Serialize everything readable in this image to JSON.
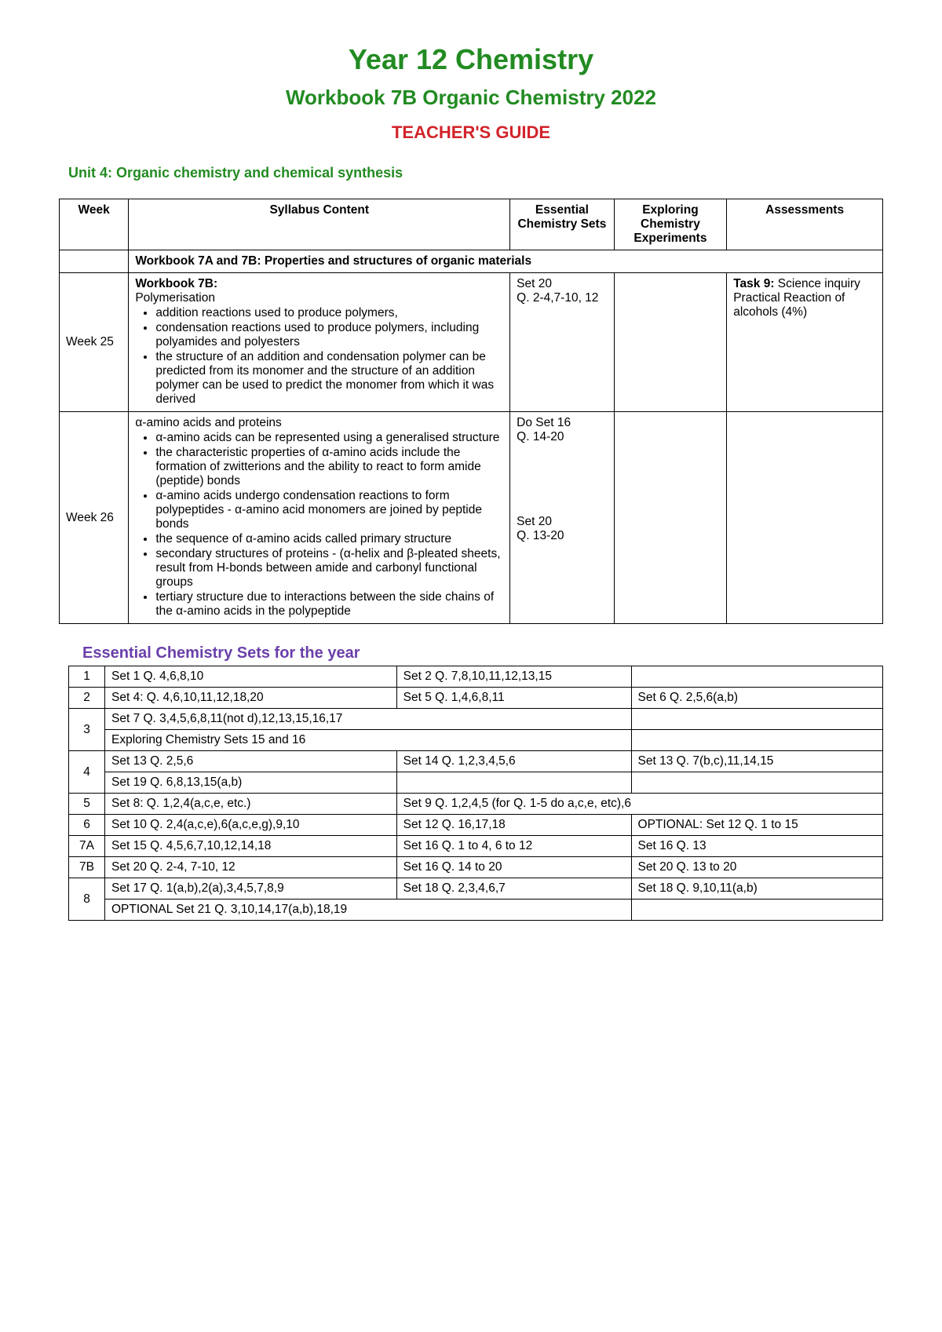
{
  "header": {
    "title1": "Year 12 Chemistry",
    "title2": "Workbook 7B Organic Chemistry 2022",
    "title3": "TEACHER'S GUIDE",
    "unit": "Unit 4: Organic chemistry and chemical synthesis"
  },
  "syllabusTable": {
    "columns": [
      "Week",
      "Syllabus Content",
      "Essential Chemistry Sets",
      "Exploring Chemistry Experiments",
      "Assessments"
    ],
    "sectionRow": "Workbook 7A and 7B: Properties and structures of organic materials",
    "rows": [
      {
        "week": "Week 25",
        "contentHeading": "Workbook 7B:",
        "contentIntro": "Polymerisation",
        "bullets": [
          "addition reactions used to produce polymers,",
          "condensation reactions used to produce polymers, including polyamides and polyesters",
          "the structure of an addition and condensation polymer can be predicted from its monomer and the structure of an addition polymer can be used to predict the monomer from which it was derived"
        ],
        "sets": "Set 20\nQ. 2-4,7-10, 12",
        "experiments": "",
        "assessments": "Task 9:\nScience inquiry Practical Reaction of alcohols (4%)",
        "assessBold": "Task 9:"
      },
      {
        "week": "Week 26",
        "contentHeading": "",
        "contentIntro": "α-amino acids and proteins",
        "bullets": [
          "α-amino acids can be represented using a generalised structure",
          "the characteristic properties of α-amino acids include the formation of zwitterions and the ability to react to form amide (peptide) bonds",
          "α-amino acids undergo condensation reactions to form polypeptides - α-amino acid monomers are joined by peptide bonds",
          "the sequence of α-amino acids called primary structure",
          "secondary structures of proteins - (α-helix and β-pleated sheets, result from H-bonds between amide and carbonyl functional groups",
          "tertiary structure due to interactions between the side chains of the α-amino acids in the polypeptide"
        ],
        "sets": "Do Set 16\nQ. 14-20\n\n\n\n\n\nSet 20\nQ. 13-20",
        "experiments": "",
        "assessments": ""
      }
    ]
  },
  "setsHeading": "Essential Chemistry Sets for the year",
  "setsTable": {
    "rows": [
      {
        "num": "1",
        "cells": [
          "Set 1 Q. 4,6,8,10",
          "Set 2 Q. 7,8,10,11,12,13,15",
          ""
        ]
      },
      {
        "num": "2",
        "cells": [
          "Set 4: Q. 4,6,10,11,12,18,20",
          "Set 5 Q. 1,4,6,8,11",
          "Set 6 Q. 2,5,6(a,b)"
        ]
      },
      {
        "num": "3",
        "rowspan": 2,
        "cells": [
          "Set 7 Q. 3,4,5,6,8,11(not d),12,13,15,16,17",
          "__span2",
          ""
        ]
      },
      {
        "cells": [
          "Exploring Chemistry Sets 15 and 16",
          "__span2",
          ""
        ]
      },
      {
        "num": "4",
        "rowspan": 2,
        "cells": [
          "Set 13 Q. 2,5,6",
          "Set 14 Q. 1,2,3,4,5,6",
          "Set 13 Q. 7(b,c),11,14,15"
        ]
      },
      {
        "cells": [
          "Set 19 Q. 6,8,13,15(a,b)",
          "",
          ""
        ]
      },
      {
        "num": "5",
        "cells": [
          "Set 8: Q. 1,2,4(a,c,e, etc.)",
          "Set 9 Q. 1,2,4,5 (for Q. 1-5 do a,c,e, etc),6",
          "__merge_prev"
        ]
      },
      {
        "num": "6",
        "cells": [
          "Set 10 Q. 2,4(a,c,e),6(a,c,e,g),9,10",
          "Set 12 Q. 16,17,18",
          "OPTIONAL: Set 12 Q. 1 to 15"
        ]
      },
      {
        "num": "7A",
        "cells": [
          "Set 15 Q. 4,5,6,7,10,12,14,18",
          "Set 16 Q. 1 to 4, 6 to 12",
          "Set 16 Q. 13"
        ]
      },
      {
        "num": "7B",
        "cells": [
          "Set 20 Q. 2-4, 7-10, 12",
          "Set 16 Q. 14 to 20",
          "Set 20 Q. 13 to 20"
        ]
      },
      {
        "num": "8",
        "rowspan": 2,
        "cells": [
          "Set 17 Q. 1(a,b),2(a),3,4,5,7,8,9",
          "Set 18 Q. 2,3,4,6,7",
          "Set 18 Q. 9,10,11(a,b)"
        ]
      },
      {
        "cells": [
          "OPTIONAL Set 21 Q. 3,10,14,17(a,b),18,19",
          "__span2",
          ""
        ]
      }
    ]
  }
}
